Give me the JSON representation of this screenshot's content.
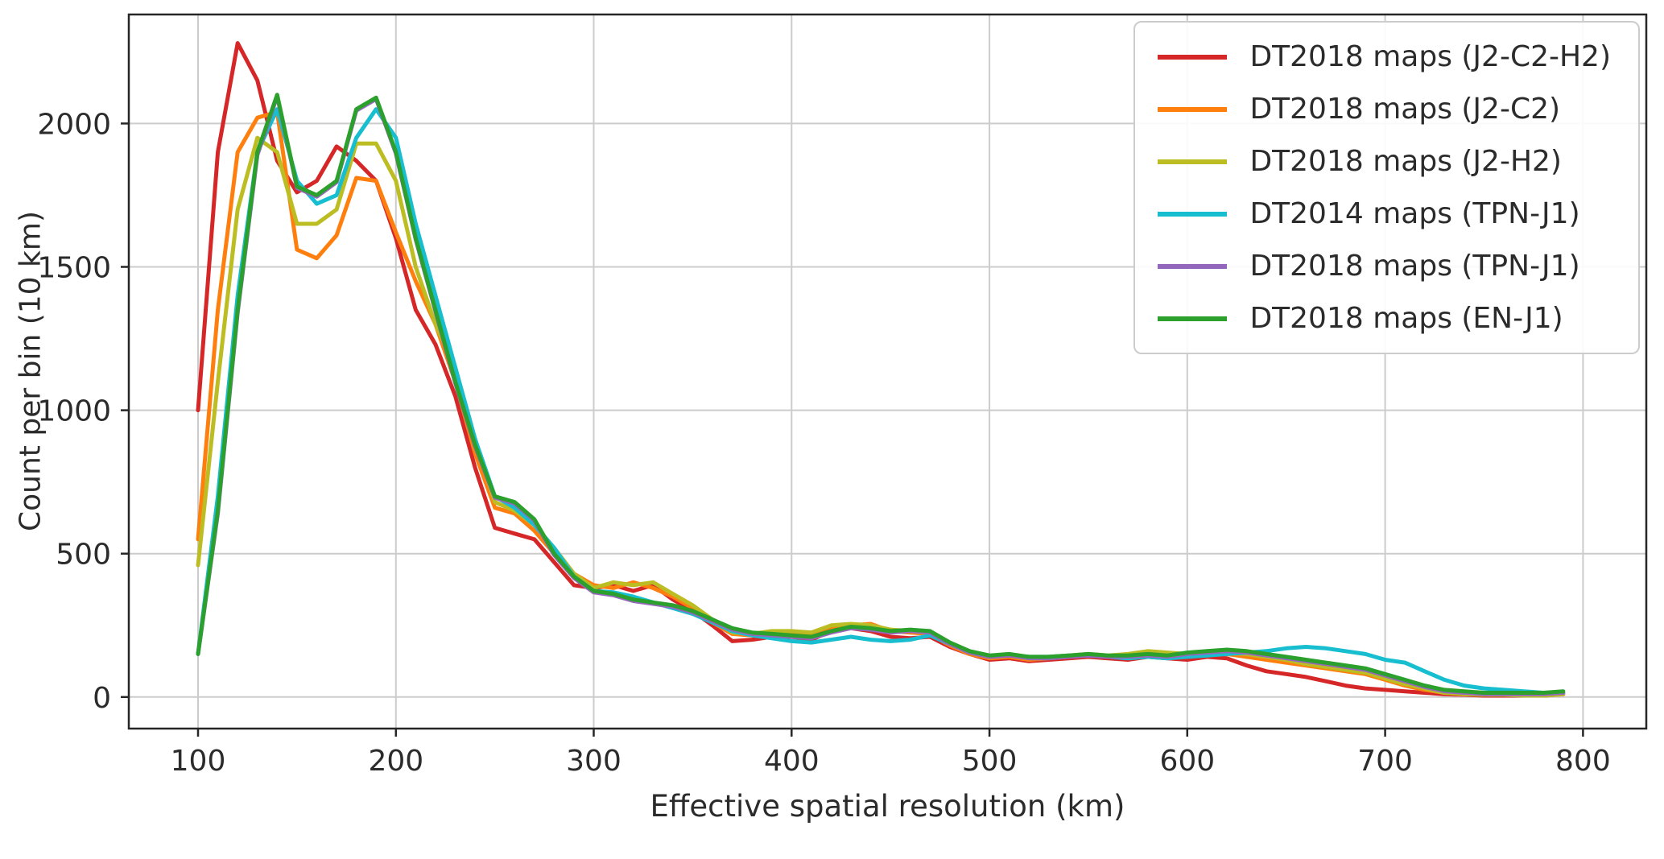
{
  "chart_data": {
    "type": "line",
    "title": "",
    "xlabel": "Effective spatial resolution (km)",
    "ylabel": "Count per bin (10 km)",
    "xlim": [
      65,
      832
    ],
    "ylim": [
      -110,
      2380
    ],
    "xticks": [
      100,
      200,
      300,
      400,
      500,
      600,
      700,
      800
    ],
    "yticks": [
      0,
      500,
      1000,
      1500,
      2000
    ],
    "grid": true,
    "legend_position": "top-right",
    "grid_color": "#cccccc",
    "axis_color": "#262626",
    "text_color": "#2b2b2b",
    "x": [
      100,
      110,
      120,
      130,
      140,
      150,
      160,
      170,
      180,
      190,
      200,
      210,
      220,
      230,
      240,
      250,
      260,
      270,
      280,
      290,
      300,
      310,
      320,
      330,
      340,
      350,
      360,
      370,
      380,
      390,
      400,
      410,
      420,
      430,
      440,
      450,
      460,
      470,
      480,
      490,
      500,
      510,
      520,
      530,
      540,
      550,
      560,
      570,
      580,
      590,
      600,
      610,
      620,
      630,
      640,
      650,
      660,
      670,
      680,
      690,
      700,
      710,
      720,
      730,
      740,
      750,
      760,
      770,
      780,
      790
    ],
    "series": [
      {
        "name": "DT2018 maps (J2-C2-H2)",
        "color": "#d62728",
        "values": [
          1000,
          1900,
          2280,
          2150,
          1870,
          1760,
          1800,
          1920,
          1870,
          1800,
          1600,
          1350,
          1230,
          1050,
          800,
          590,
          570,
          550,
          470,
          390,
          380,
          390,
          370,
          390,
          340,
          300,
          250,
          195,
          200,
          210,
          210,
          200,
          230,
          240,
          230,
          210,
          205,
          210,
          175,
          150,
          130,
          135,
          125,
          130,
          135,
          140,
          135,
          130,
          140,
          135,
          130,
          140,
          135,
          110,
          90,
          80,
          70,
          55,
          40,
          30,
          25,
          20,
          15,
          10,
          8,
          5,
          5,
          5,
          5,
          10
        ]
      },
      {
        "name": "DT2018 maps (J2-C2)",
        "color": "#ff7f0e",
        "values": [
          550,
          1350,
          1900,
          2020,
          2040,
          1560,
          1530,
          1610,
          1810,
          1800,
          1620,
          1450,
          1300,
          1100,
          850,
          660,
          640,
          580,
          500,
          430,
          390,
          380,
          400,
          380,
          350,
          310,
          260,
          220,
          215,
          220,
          225,
          215,
          245,
          250,
          255,
          230,
          225,
          220,
          180,
          150,
          135,
          140,
          130,
          135,
          140,
          145,
          140,
          145,
          155,
          150,
          150,
          155,
          150,
          140,
          130,
          120,
          110,
          100,
          90,
          80,
          60,
          40,
          25,
          15,
          10,
          8,
          8,
          8,
          5,
          10
        ]
      },
      {
        "name": "DT2018 maps (J2-H2)",
        "color": "#bcbd22",
        "values": [
          460,
          1100,
          1700,
          1950,
          1900,
          1650,
          1650,
          1700,
          1930,
          1930,
          1800,
          1500,
          1300,
          1150,
          900,
          680,
          650,
          600,
          520,
          430,
          380,
          400,
          390,
          400,
          360,
          320,
          270,
          225,
          220,
          230,
          230,
          225,
          250,
          255,
          250,
          235,
          230,
          225,
          185,
          155,
          140,
          145,
          135,
          140,
          145,
          150,
          145,
          150,
          160,
          155,
          150,
          160,
          155,
          150,
          140,
          130,
          115,
          105,
          95,
          85,
          65,
          45,
          30,
          15,
          10,
          8,
          8,
          5,
          5,
          10
        ]
      },
      {
        "name": "DT2014 maps (TPN-J1)",
        "color": "#17becf",
        "values": [
          150,
          700,
          1400,
          1900,
          2050,
          1800,
          1720,
          1750,
          1950,
          2050,
          1950,
          1650,
          1400,
          1150,
          900,
          700,
          660,
          600,
          520,
          420,
          370,
          365,
          350,
          330,
          310,
          290,
          260,
          230,
          215,
          205,
          195,
          190,
          200,
          210,
          200,
          195,
          200,
          215,
          185,
          155,
          140,
          145,
          140,
          140,
          145,
          145,
          140,
          135,
          140,
          135,
          140,
          145,
          150,
          155,
          160,
          170,
          175,
          170,
          160,
          150,
          130,
          120,
          90,
          60,
          40,
          30,
          25,
          20,
          15,
          15
        ]
      },
      {
        "name": "DT2018 maps (TPN-J1)",
        "color": "#9467bd",
        "values": [
          150,
          640,
          1340,
          1890,
          2095,
          1775,
          1745,
          1795,
          2045,
          2085,
          1895,
          1595,
          1345,
          1095,
          875,
          695,
          675,
          615,
          495,
          415,
          365,
          355,
          335,
          325,
          315,
          295,
          265,
          235,
          220,
          215,
          210,
          205,
          225,
          240,
          235,
          225,
          230,
          225,
          185,
          155,
          140,
          145,
          135,
          135,
          140,
          145,
          140,
          140,
          145,
          140,
          150,
          155,
          160,
          155,
          145,
          135,
          125,
          115,
          105,
          95,
          75,
          55,
          35,
          20,
          15,
          10,
          10,
          10,
          10,
          15
        ]
      },
      {
        "name": "DT2018 maps (EN-J1)",
        "color": "#2ca02c",
        "values": [
          150,
          650,
          1350,
          1900,
          2100,
          1780,
          1750,
          1800,
          2050,
          2090,
          1900,
          1600,
          1350,
          1100,
          880,
          700,
          680,
          620,
          500,
          420,
          370,
          360,
          340,
          330,
          320,
          300,
          270,
          240,
          225,
          220,
          215,
          210,
          230,
          245,
          240,
          230,
          235,
          230,
          190,
          160,
          145,
          150,
          140,
          140,
          145,
          150,
          145,
          145,
          150,
          145,
          155,
          160,
          165,
          160,
          150,
          140,
          130,
          120,
          110,
          100,
          80,
          60,
          40,
          25,
          20,
          15,
          15,
          15,
          15,
          20
        ]
      }
    ]
  }
}
